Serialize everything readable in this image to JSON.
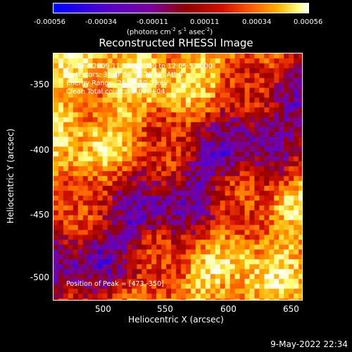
{
  "colorbar": {
    "ticks": [
      "-0.00056",
      "-0.00034",
      "-0.00011",
      "0.00011",
      "0.00034",
      "0.00056"
    ],
    "units_prefix": "(photons cm",
    "units_exp1": "-2",
    "units_mid1": " s",
    "units_exp2": "-1",
    "units_mid2": " asec",
    "units_exp3": "-2",
    "units_suffix": ")",
    "colors": [
      "#0000ff",
      "#5a00c8",
      "#7a00a0",
      "#900000",
      "#d01000",
      "#ff6000",
      "#ffb000",
      "#ffff80",
      "#ffffff"
    ]
  },
  "plot": {
    "title": "Reconstructed RHESSI Image",
    "xlabel": "Heliocentric X (arcsec)",
    "ylabel": "Heliocentric Y (arcsec)",
    "xticks": [
      "500",
      "550",
      "600",
      "650"
    ],
    "yticks": [
      "-350",
      "-400",
      "-450",
      "-500"
    ],
    "annotations": {
      "time": "21-Dec-2009 11:59:52.000 to 12:05:52.000",
      "detectors": "Detectors: 3F 4F 5F 6F 7F 8F, Att 0",
      "energy": "Energy Range: 25.0 - 50.0 keV",
      "method": "Clean    Total counts: 2.69E+04",
      "peak": "Position of Peak = [473,-350]"
    }
  },
  "timestamp": "9-May-2022 22:34"
}
